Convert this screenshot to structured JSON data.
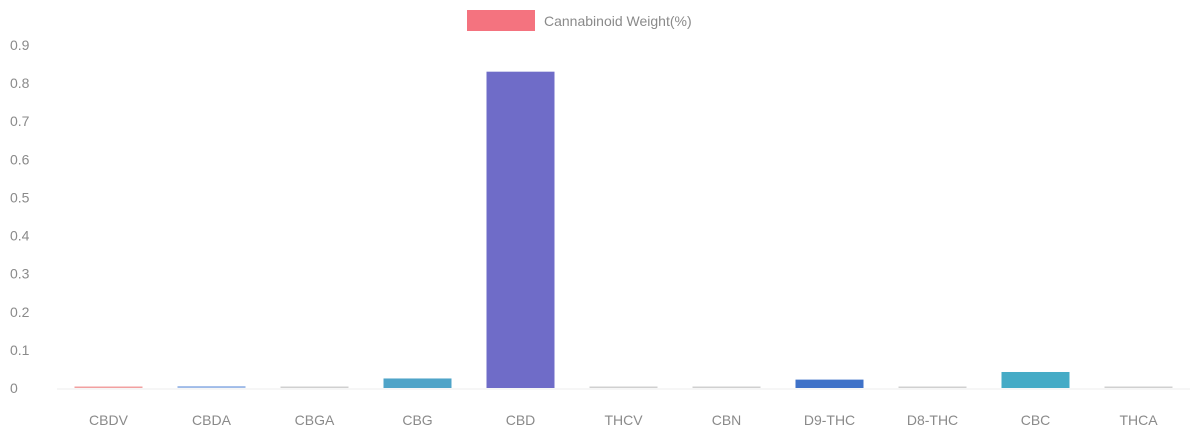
{
  "chart_data": {
    "type": "bar",
    "legend": {
      "label": "Cannabinoid Weight(%)",
      "color": "#f4737f",
      "position": "top-center"
    },
    "categories": [
      "CBDV",
      "CBDA",
      "CBGA",
      "CBG",
      "CBD",
      "THCV",
      "CBN",
      "D9-THC",
      "D8-THC",
      "CBC",
      "THCA"
    ],
    "series": [
      {
        "name": "Cannabinoid Weight(%)",
        "values": [
          0.003,
          0.005,
          0.0,
          0.025,
          0.83,
          0.0,
          0.0,
          0.022,
          0.0,
          0.042,
          0.0
        ]
      }
    ],
    "bar_colors": [
      "#f2a0a0",
      "#9fbbe8",
      "#d0d0d0",
      "#4fa4c8",
      "#6f6cc8",
      "#d0d0d0",
      "#d0d0d0",
      "#3f72c8",
      "#d0d0d0",
      "#45abc6",
      "#d0d0d0"
    ],
    "ylim": [
      0,
      0.9
    ],
    "yticks": [
      "0",
      "0.1",
      "0.2",
      "0.3",
      "0.4",
      "0.5",
      "0.6",
      "0.7",
      "0.8",
      "0.9"
    ],
    "grid": false
  }
}
